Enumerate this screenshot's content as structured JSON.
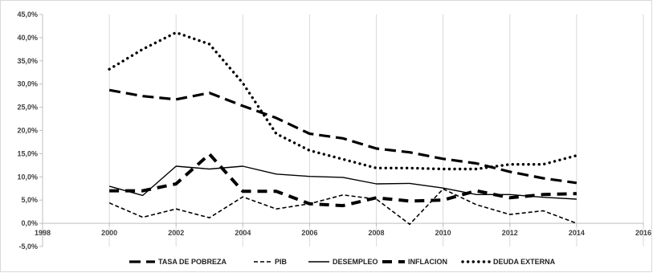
{
  "chart_data": {
    "type": "line",
    "title": "",
    "xlabel": "",
    "ylabel": "",
    "xlim": [
      1998,
      2016
    ],
    "ylim": [
      -0.05,
      0.45
    ],
    "x_ticks": [
      1998,
      2000,
      2002,
      2004,
      2006,
      2008,
      2010,
      2012,
      2014,
      2016
    ],
    "x_tick_labels": [
      "1998",
      "2000",
      "2002",
      "2004",
      "2006",
      "2008",
      "2010",
      "2012",
      "2014",
      "2016"
    ],
    "y_ticks": [
      -0.05,
      0.0,
      0.05,
      0.1,
      0.15,
      0.2,
      0.25,
      0.3,
      0.35,
      0.4,
      0.45
    ],
    "y_tick_labels": [
      "-5,0%",
      "0,0%",
      "5,0%",
      "10,0%",
      "15,0%",
      "20,0%",
      "25,0%",
      "30,0%",
      "35,0%",
      "40,0%",
      "45,0%"
    ],
    "grid": "vertical",
    "legend_position": "bottom",
    "series": [
      {
        "name": "TASA DE POBREZA",
        "style": "long-dash",
        "color": "#000000",
        "x": [
          2000,
          2001,
          2002,
          2003,
          2004,
          2005,
          2006,
          2007,
          2008,
          2009,
          2010,
          2011,
          2012,
          2013,
          2014
        ],
        "values": [
          0.287,
          0.274,
          0.267,
          0.281,
          0.253,
          0.227,
          0.193,
          0.183,
          0.161,
          0.153,
          0.139,
          0.129,
          0.111,
          0.097,
          0.087
        ]
      },
      {
        "name": "PIB",
        "style": "short-dash",
        "color": "#000000",
        "x": [
          2000,
          2001,
          2002,
          2003,
          2004,
          2005,
          2006,
          2007,
          2008,
          2009,
          2010,
          2011,
          2012,
          2013,
          2014
        ],
        "values": [
          0.044,
          0.013,
          0.031,
          0.012,
          0.057,
          0.031,
          0.042,
          0.061,
          0.052,
          -0.002,
          0.074,
          0.04,
          0.019,
          0.027,
          0.0
        ]
      },
      {
        "name": "DESEMPLEO",
        "style": "solid",
        "color": "#000000",
        "x": [
          2000,
          2001,
          2002,
          2003,
          2004,
          2005,
          2006,
          2007,
          2008,
          2009,
          2010,
          2011,
          2012,
          2013,
          2014
        ],
        "values": [
          0.08,
          0.06,
          0.123,
          0.117,
          0.123,
          0.106,
          0.101,
          0.099,
          0.085,
          0.086,
          0.076,
          0.062,
          0.062,
          0.056,
          0.052
        ]
      },
      {
        "name": "INFLACION",
        "style": "heavy-dash",
        "color": "#000000",
        "x": [
          2000,
          2001,
          2002,
          2003,
          2004,
          2005,
          2006,
          2007,
          2008,
          2009,
          2010,
          2011,
          2012,
          2013,
          2014
        ],
        "values": [
          0.07,
          0.07,
          0.085,
          0.149,
          0.069,
          0.069,
          0.042,
          0.038,
          0.055,
          0.048,
          0.05,
          0.07,
          0.055,
          0.062,
          0.064
        ]
      },
      {
        "name": "DEUDA EXTERNA",
        "style": "dotted",
        "color": "#000000",
        "x": [
          2000,
          2001,
          2002,
          2003,
          2004,
          2005,
          2006,
          2007,
          2008,
          2009,
          2010,
          2011,
          2012,
          2013,
          2014
        ],
        "values": [
          0.332,
          0.375,
          0.411,
          0.386,
          0.302,
          0.193,
          0.157,
          0.138,
          0.119,
          0.119,
          0.117,
          0.117,
          0.127,
          0.127,
          0.146
        ]
      }
    ]
  }
}
